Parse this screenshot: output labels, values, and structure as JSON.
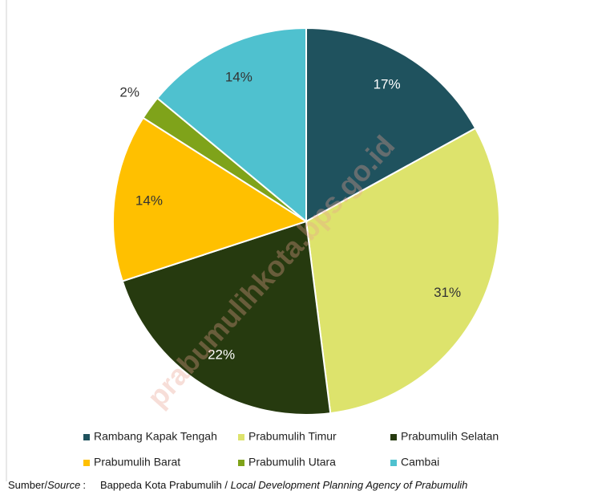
{
  "chart_data": {
    "type": "pie",
    "categories": [
      "Rambang Kapak Tengah",
      "Prabumulih Timur",
      "Prabumulih Selatan",
      "Prabumulih Barat",
      "Prabumulih Utara",
      "Cambai"
    ],
    "values": [
      17,
      31,
      22,
      14,
      2,
      14
    ],
    "value_labels": [
      "17%",
      "31%",
      "22%",
      "14%",
      "2%",
      "14%"
    ],
    "colors": [
      "#1f525e",
      "#dde36c",
      "#263a0f",
      "#ffc000",
      "#7fa31a",
      "#4fc1cf"
    ],
    "legend": "bottom",
    "watermark": "prabumulihkota.bps.go.id",
    "source_label": "Sumber/",
    "source_label_en": "Source",
    "source_sep": ":",
    "source_text": "Bappeda Kota Prabumulih / ",
    "source_text_en": "Local Development Planning Agency of Prabumulih"
  }
}
